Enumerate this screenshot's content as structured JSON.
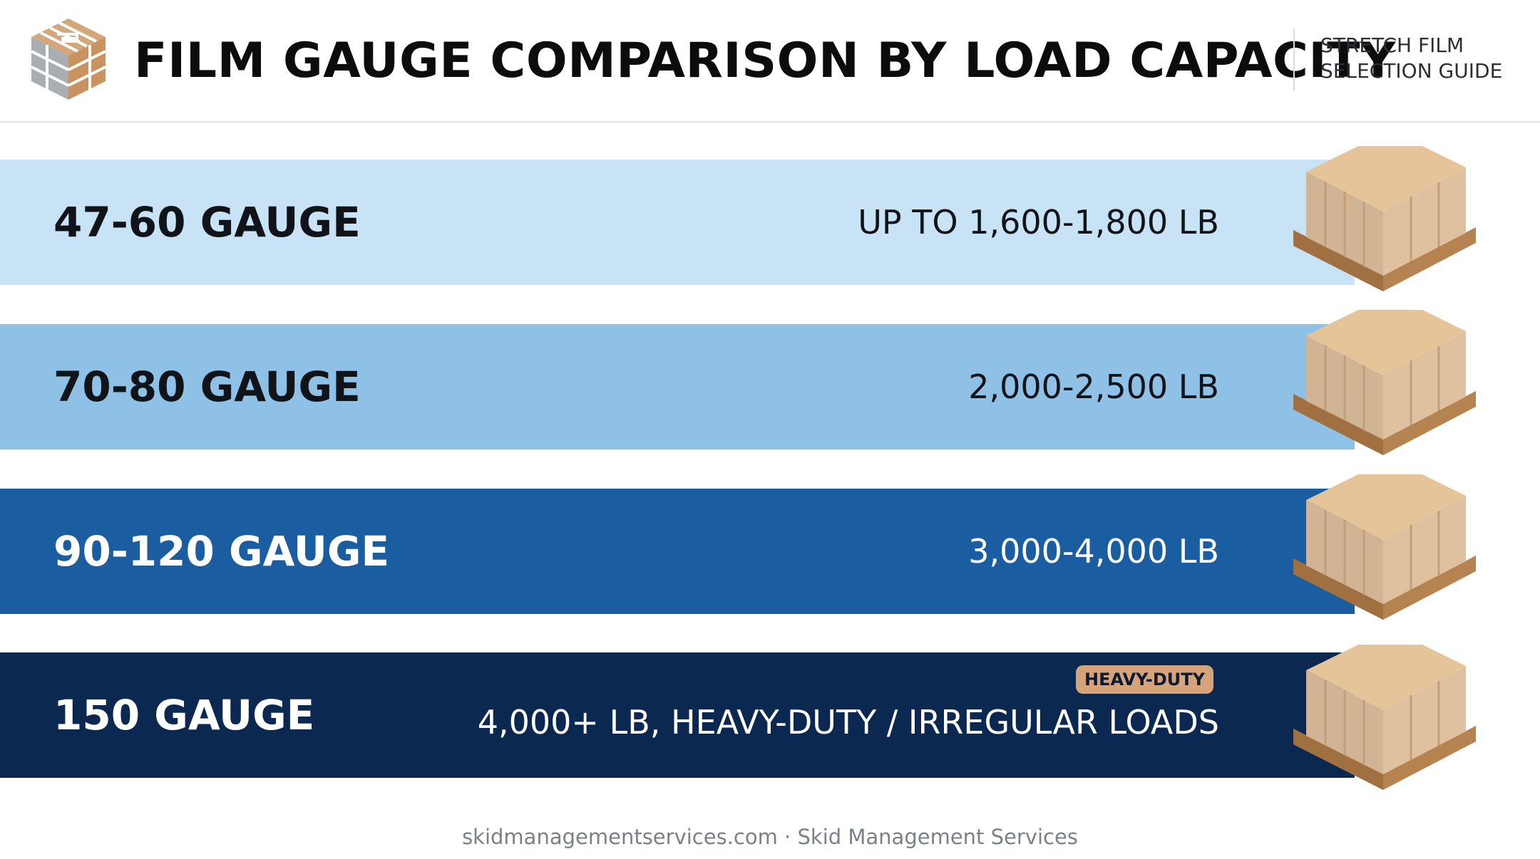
{
  "header": {
    "title": "FILM GAUGE COMPARISON BY LOAD CAPACITY",
    "subtitle_line1": "STRETCH FILM",
    "subtitle_line2": "SELECTION GUIDE"
  },
  "bands": [
    {
      "label": "47-60 GAUGE",
      "value": "UP TO 1,600-1,800 LB",
      "color": "#c9e3f6",
      "text_color": "#101418"
    },
    {
      "label": "70-80 GAUGE",
      "value": "2,000-2,500 LB",
      "color": "#8fc0e6",
      "text_color": "#101418"
    },
    {
      "label": "90-120 GAUGE",
      "value": "3,000-4,000 LB",
      "color": "#1b5da1",
      "text_color": "#ffffff"
    },
    {
      "label": "150 GAUGE",
      "value": "4,000+ LB, HEAVY-DUTY / IRREGULAR LOADS",
      "badge": "HEAVY-DUTY",
      "color": "#0b2850",
      "text_color": "#ffffff"
    }
  ],
  "icons": {
    "logo": "stacked-pallet-logo-icon",
    "pallet": "wrapped-pallet-icon"
  },
  "footer": {
    "text": "skidmanagementservices.com · Skid Management Services"
  }
}
